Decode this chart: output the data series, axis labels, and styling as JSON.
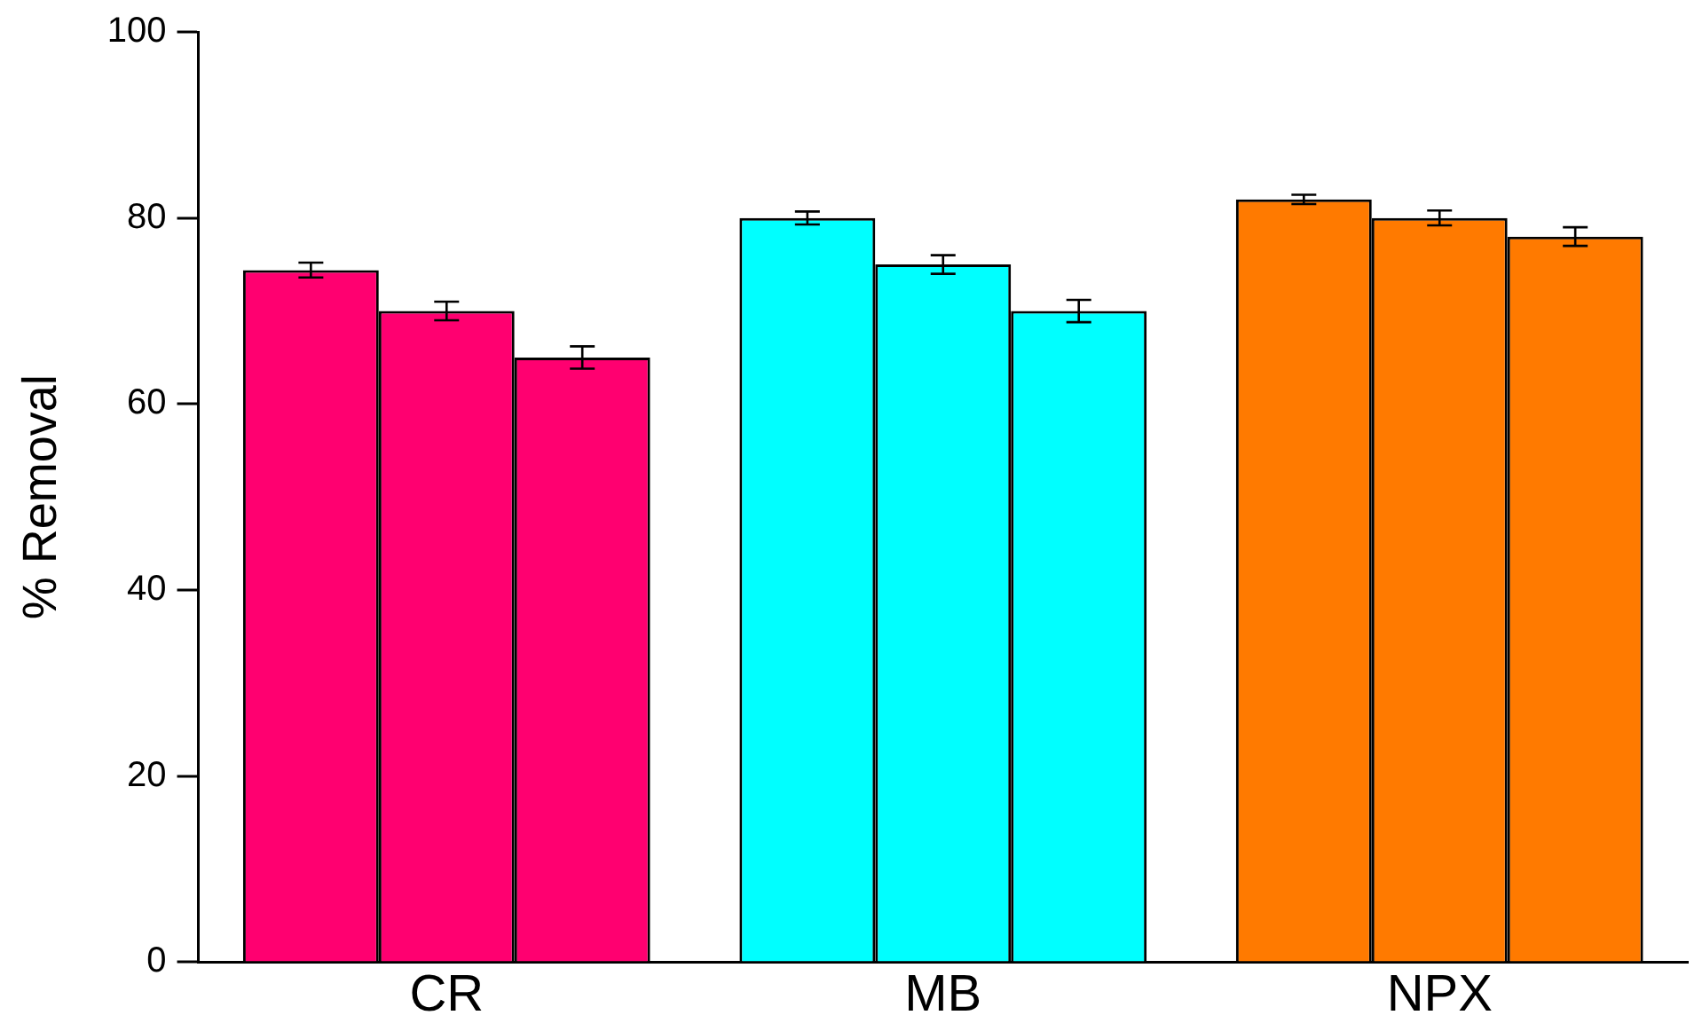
{
  "chart_data": {
    "type": "bar",
    "ylabel": "% Removal",
    "categories": [
      "CR",
      "MB",
      "NPX"
    ],
    "series": [
      {
        "colors": [
          "#ff0070",
          "#00ffff",
          "#ff7a00"
        ],
        "values": [
          74.4,
          80,
          82
        ],
        "errors": [
          0.8,
          0.7,
          0.5
        ]
      },
      {
        "colors": [
          "#ff0070",
          "#00ffff",
          "#ff7a00"
        ],
        "values": [
          70,
          75,
          80
        ],
        "errors": [
          1,
          1,
          0.8
        ]
      },
      {
        "colors": [
          "#ff0070",
          "#00ffff",
          "#ff7a00"
        ],
        "values": [
          65,
          70,
          78
        ],
        "errors": [
          1.2,
          1.2,
          1
        ]
      }
    ],
    "ylim": [
      0,
      100
    ],
    "yticks": [
      0,
      20,
      40,
      60,
      80,
      100
    ],
    "grid": false
  }
}
